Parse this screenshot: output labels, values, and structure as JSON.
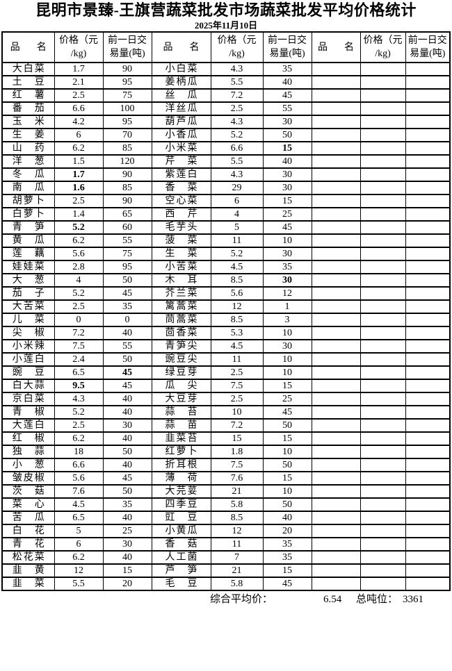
{
  "title": "昆明市景臻-王旗营蔬菜批发市场蔬菜批发平均价格统计",
  "date": "2025年11月10日",
  "table": {
    "headers": {
      "name": "品名",
      "price_line1": "价格（元",
      "price_line2": "/kg)",
      "volume_line1": "前一日交",
      "volume_line2": "易量(吨)"
    },
    "groups": [
      {
        "rows": [
          {
            "name": "大白菜",
            "price": "1.7",
            "volume": "90"
          },
          {
            "name": "土豆",
            "price": "2.1",
            "volume": "95"
          },
          {
            "name": "红薯",
            "price": "2.5",
            "volume": "75"
          },
          {
            "name": "番茄",
            "price": "6.6",
            "volume": "100"
          },
          {
            "name": "玉米",
            "price": "4.2",
            "volume": "95"
          },
          {
            "name": "生姜",
            "price": "6",
            "volume": "70"
          },
          {
            "name": "山药",
            "price": "6.2",
            "volume": "85"
          },
          {
            "name": "洋葱",
            "price": "1.5",
            "volume": "120"
          },
          {
            "name": "冬瓜",
            "price": "1.7",
            "volume": "90",
            "price_bold": true
          },
          {
            "name": "南瓜",
            "price": "1.6",
            "volume": "85",
            "price_bold": true
          },
          {
            "name": "胡萝卜",
            "price": "2.5",
            "volume": "90"
          },
          {
            "name": "白萝卜",
            "price": "1.4",
            "volume": "65"
          },
          {
            "name": "青笋",
            "price": "5.2",
            "volume": "60",
            "price_bold": true
          },
          {
            "name": "黄瓜",
            "price": "6.2",
            "volume": "55"
          },
          {
            "name": "莲藕",
            "price": "5.6",
            "volume": "75"
          },
          {
            "name": "娃娃菜",
            "price": "2.8",
            "volume": "95"
          },
          {
            "name": "大葱",
            "price": "4",
            "volume": "50"
          },
          {
            "name": "茄子",
            "price": "5.2",
            "volume": "45"
          },
          {
            "name": "大苦菜",
            "price": "2.5",
            "volume": "35"
          },
          {
            "name": "儿菜",
            "price": "0",
            "volume": "0"
          },
          {
            "name": "尖椒",
            "price": "7.2",
            "volume": "40"
          },
          {
            "name": "小米辣",
            "price": "7.5",
            "volume": "55"
          },
          {
            "name": "小莲白",
            "price": "2.4",
            "volume": "50"
          },
          {
            "name": "豌豆",
            "price": "6.5",
            "volume": "45",
            "volume_bold": true
          },
          {
            "name": "白大蒜",
            "price": "9.5",
            "volume": "45",
            "price_bold": true
          },
          {
            "name": "京白菜",
            "price": "4.3",
            "volume": "40"
          },
          {
            "name": "青椒",
            "price": "5.2",
            "volume": "40"
          },
          {
            "name": "大莲白",
            "price": "2.5",
            "volume": "30"
          },
          {
            "name": "红椒",
            "price": "6.2",
            "volume": "40"
          },
          {
            "name": "独蒜",
            "price": "18",
            "volume": "50"
          },
          {
            "name": "小葱",
            "price": "6.6",
            "volume": "40"
          },
          {
            "name": "皱皮椒",
            "price": "5.6",
            "volume": "45"
          },
          {
            "name": "茨菇",
            "price": "7.6",
            "volume": "50"
          },
          {
            "name": "菜心",
            "price": "4.5",
            "volume": "35"
          },
          {
            "name": "苦瓜",
            "price": "6.5",
            "volume": "40"
          },
          {
            "name": "白花",
            "price": "5",
            "volume": "25"
          },
          {
            "name": "青花",
            "price": "6",
            "volume": "30"
          },
          {
            "name": "松花菜",
            "price": "6.2",
            "volume": "40"
          },
          {
            "name": "韭黄",
            "price": "12",
            "volume": "15"
          },
          {
            "name": "韭菜",
            "price": "5.5",
            "volume": "20"
          }
        ]
      },
      {
        "rows": [
          {
            "name": "小白菜",
            "price": "4.3",
            "volume": "35"
          },
          {
            "name": "姜柄瓜",
            "price": "5.5",
            "volume": "40"
          },
          {
            "name": "丝瓜",
            "price": "7.2",
            "volume": "45"
          },
          {
            "name": "洋丝瓜",
            "price": "2.5",
            "volume": "55"
          },
          {
            "name": "葫芦瓜",
            "price": "4.3",
            "volume": "30"
          },
          {
            "name": "小香瓜",
            "price": "5.2",
            "volume": "50"
          },
          {
            "name": "小米菜",
            "price": "6.6",
            "volume": "15",
            "volume_bold": true
          },
          {
            "name": "芹菜",
            "price": "5.5",
            "volume": "40"
          },
          {
            "name": "紫莲白",
            "price": "4.3",
            "volume": "30"
          },
          {
            "name": "香菜",
            "price": "29",
            "volume": "30"
          },
          {
            "name": "空心菜",
            "price": "6",
            "volume": "15"
          },
          {
            "name": "西芹",
            "price": "4",
            "volume": "25"
          },
          {
            "name": "毛芋头",
            "price": "5",
            "volume": "45"
          },
          {
            "name": "菠菜",
            "price": "11",
            "volume": "10"
          },
          {
            "name": "生菜",
            "price": "5.2",
            "volume": "30"
          },
          {
            "name": "小苦菜",
            "price": "4.5",
            "volume": "35"
          },
          {
            "name": "木耳",
            "price": "8.5",
            "volume": "30",
            "volume_bold": true
          },
          {
            "name": "芥兰菜",
            "price": "5.6",
            "volume": "12"
          },
          {
            "name": "篱蒿菜",
            "price": "12",
            "volume": "1"
          },
          {
            "name": "茼蒿菜",
            "price": "8.5",
            "volume": "3"
          },
          {
            "name": "茴香菜",
            "price": "5.3",
            "volume": "10"
          },
          {
            "name": "青笋尖",
            "price": "4.5",
            "volume": "30"
          },
          {
            "name": "豌豆尖",
            "price": "11",
            "volume": "10"
          },
          {
            "name": "绿豆芽",
            "price": "2.5",
            "volume": "10"
          },
          {
            "name": "瓜尖",
            "price": "7.5",
            "volume": "15"
          },
          {
            "name": "大豆芽",
            "price": "2.5",
            "volume": "25"
          },
          {
            "name": "蒜苔",
            "price": "10",
            "volume": "45"
          },
          {
            "name": "蒜苗",
            "price": "7.2",
            "volume": "50"
          },
          {
            "name": "韭菜苔",
            "price": "15",
            "volume": "15"
          },
          {
            "name": "红萝卜",
            "price": "1.8",
            "volume": "10"
          },
          {
            "name": "折耳根",
            "price": "7.5",
            "volume": "50"
          },
          {
            "name": "薄荷",
            "price": "7.6",
            "volume": "15"
          },
          {
            "name": "大芫荽",
            "price": "21",
            "volume": "10"
          },
          {
            "name": "四季豆",
            "price": "5.8",
            "volume": "50"
          },
          {
            "name": "豇豆",
            "price": "8.5",
            "volume": "40"
          },
          {
            "name": "小黄瓜",
            "price": "12",
            "volume": "20"
          },
          {
            "name": "香菇",
            "price": "11",
            "volume": "35"
          },
          {
            "name": "人工菌",
            "price": "7",
            "volume": "35"
          },
          {
            "name": "芦笋",
            "price": "21",
            "volume": "15"
          },
          {
            "name": "毛豆",
            "price": "5.8",
            "volume": "45"
          }
        ]
      },
      {
        "rows": []
      }
    ]
  },
  "footer": {
    "avg_label": "综合平均价：",
    "avg_value": "6.54",
    "tonnage_label": "总吨位：",
    "tonnage_value": "3361"
  }
}
